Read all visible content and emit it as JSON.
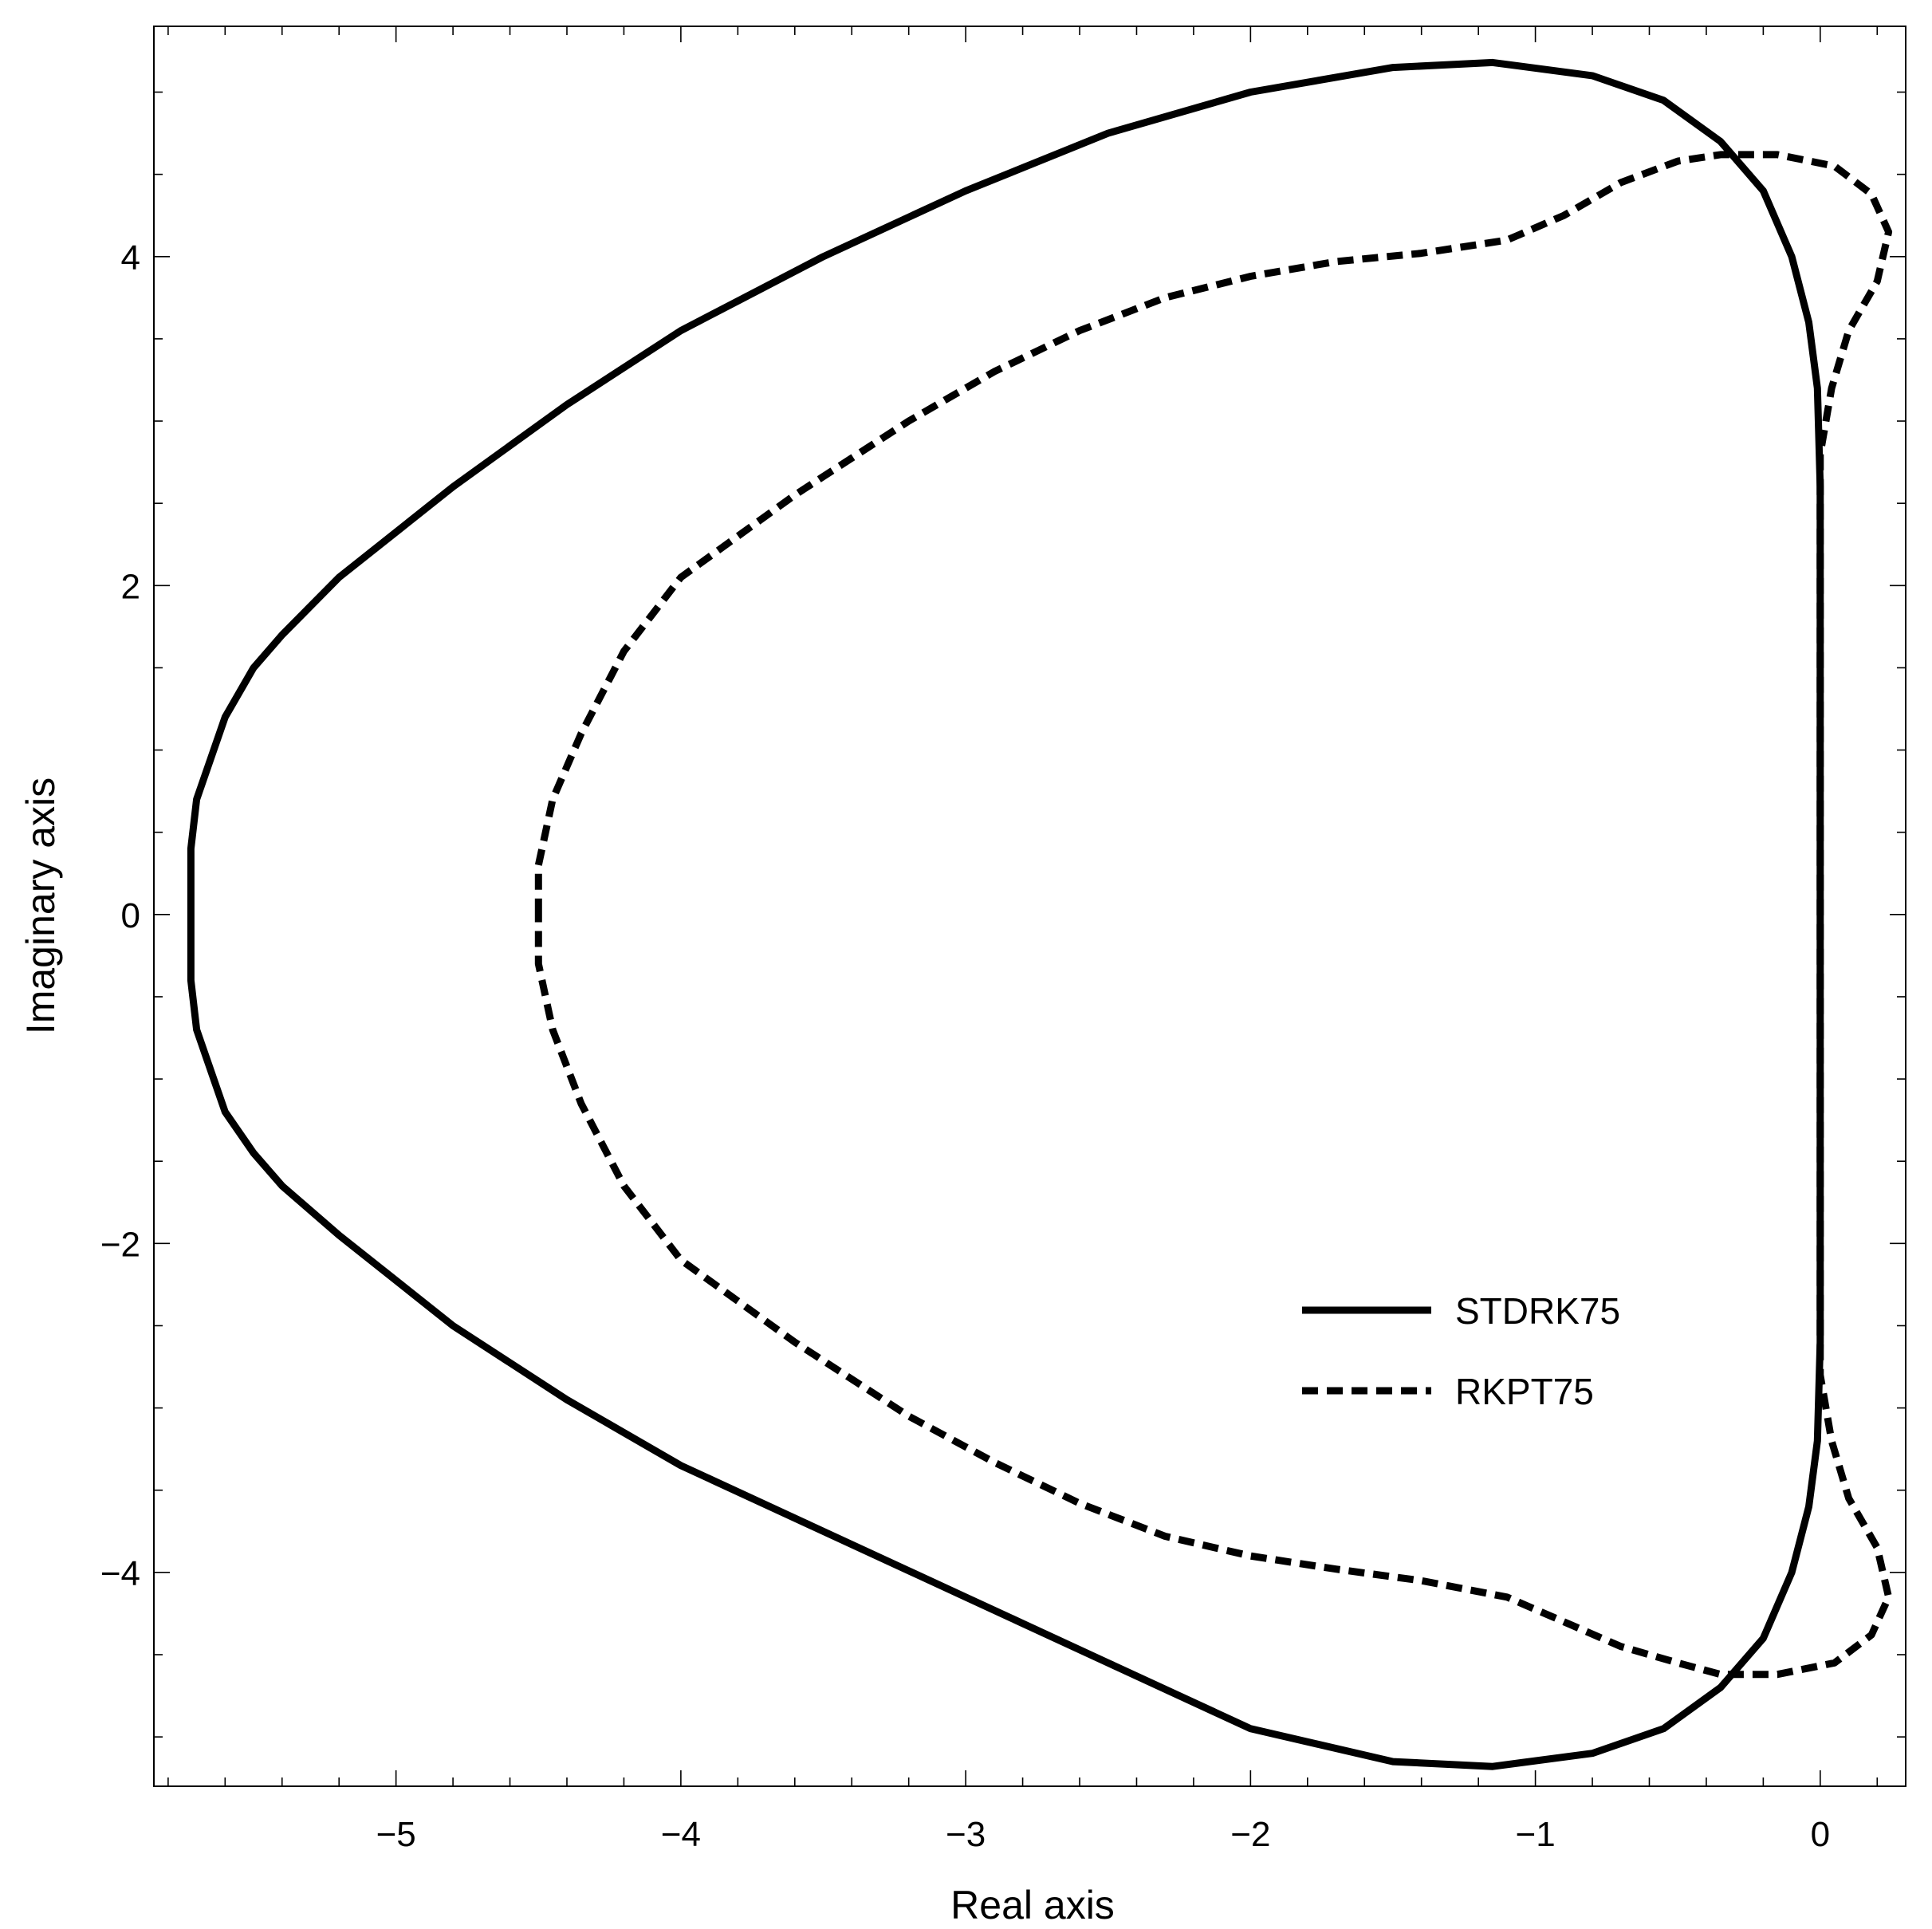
{
  "chart_data": {
    "type": "line",
    "xlabel": "Real axis",
    "ylabel": "Imaginary axis",
    "xlim": [
      -5.85,
      0.3
    ],
    "ylim": [
      -5.3,
      5.4
    ],
    "x_ticks": [
      {
        "value": -5,
        "label": "−5"
      },
      {
        "value": -4,
        "label": "−4"
      },
      {
        "value": -3,
        "label": "−3"
      },
      {
        "value": -2,
        "label": "−2"
      },
      {
        "value": -1,
        "label": "−1"
      },
      {
        "value": 0,
        "label": "0"
      }
    ],
    "y_ticks": [
      {
        "value": -4,
        "label": "−4"
      },
      {
        "value": -2,
        "label": "−2"
      },
      {
        "value": 0,
        "label": "0"
      },
      {
        "value": 2,
        "label": "2"
      },
      {
        "value": 4,
        "label": "4"
      }
    ],
    "grid": false,
    "legend_position": "bottom-right",
    "series": [
      {
        "name": "STDRK75",
        "style": "solid",
        "color": "#000000",
        "points": [
          [
            0.0,
            0.0
          ],
          [
            0.0,
            1.0
          ],
          [
            0.0,
            2.0
          ],
          [
            0.0,
            2.6
          ],
          [
            -0.01,
            3.2
          ],
          [
            -0.04,
            3.6
          ],
          [
            -0.1,
            4.0
          ],
          [
            -0.2,
            4.4
          ],
          [
            -0.35,
            4.7
          ],
          [
            -0.55,
            4.95
          ],
          [
            -0.8,
            5.1
          ],
          [
            -1.15,
            5.18
          ],
          [
            -1.5,
            5.15
          ],
          [
            -2.0,
            5.0
          ],
          [
            -2.5,
            4.75
          ],
          [
            -3.0,
            4.4
          ],
          [
            -3.5,
            4.0
          ],
          [
            -4.0,
            3.55
          ],
          [
            -4.4,
            3.1
          ],
          [
            -4.8,
            2.6
          ],
          [
            -5.2,
            2.05
          ],
          [
            -5.4,
            1.7
          ],
          [
            -5.5,
            1.5
          ],
          [
            -5.6,
            1.2
          ],
          [
            -5.7,
            0.7
          ],
          [
            -5.72,
            0.4
          ],
          [
            -5.72,
            0.0
          ],
          [
            -5.72,
            -0.4
          ],
          [
            -5.7,
            -0.7
          ],
          [
            -5.6,
            -1.2
          ],
          [
            -5.5,
            -1.45
          ],
          [
            -5.4,
            -1.65
          ],
          [
            -5.2,
            -1.95
          ],
          [
            -4.8,
            -2.5
          ],
          [
            -4.4,
            -2.95
          ],
          [
            -4.0,
            -3.35
          ],
          [
            -3.5,
            -3.75
          ],
          [
            -3.0,
            -4.15
          ],
          [
            -2.5,
            -4.55
          ],
          [
            -2.0,
            -4.95
          ],
          [
            -1.5,
            -5.15
          ],
          [
            -1.15,
            -5.18
          ],
          [
            -0.8,
            -5.1
          ],
          [
            -0.55,
            -4.95
          ],
          [
            -0.35,
            -4.7
          ],
          [
            -0.2,
            -4.4
          ],
          [
            -0.1,
            -4.0
          ],
          [
            -0.04,
            -3.6
          ],
          [
            -0.01,
            -3.2
          ],
          [
            0.0,
            -2.6
          ],
          [
            0.0,
            -2.0
          ],
          [
            0.0,
            -1.0
          ],
          [
            0.0,
            0.0
          ]
        ]
      },
      {
        "name": "RKPT75",
        "style": "dashed",
        "color": "#000000",
        "points": [
          [
            -4.5,
            0.0
          ],
          [
            -4.5,
            0.3
          ],
          [
            -4.45,
            0.7
          ],
          [
            -4.35,
            1.1
          ],
          [
            -4.2,
            1.6
          ],
          [
            -4.0,
            2.05
          ],
          [
            -3.6,
            2.55
          ],
          [
            -3.2,
            3.0
          ],
          [
            -2.9,
            3.3
          ],
          [
            -2.6,
            3.55
          ],
          [
            -2.3,
            3.75
          ],
          [
            -2.0,
            3.88
          ],
          [
            -1.7,
            3.97
          ],
          [
            -1.4,
            4.02
          ],
          [
            -1.1,
            4.1
          ],
          [
            -0.9,
            4.25
          ],
          [
            -0.7,
            4.45
          ],
          [
            -0.5,
            4.58
          ],
          [
            -0.35,
            4.62
          ],
          [
            -0.15,
            4.62
          ],
          [
            0.05,
            4.55
          ],
          [
            0.18,
            4.38
          ],
          [
            0.24,
            4.15
          ],
          [
            0.2,
            3.85
          ],
          [
            0.1,
            3.55
          ],
          [
            0.04,
            3.2
          ],
          [
            0.0,
            2.8
          ],
          [
            0.0,
            2.2
          ],
          [
            0.0,
            1.2
          ],
          [
            0.0,
            0.0
          ],
          [
            0.0,
            -1.2
          ],
          [
            0.0,
            -2.2
          ],
          [
            0.0,
            -2.8
          ],
          [
            0.04,
            -3.2
          ],
          [
            0.1,
            -3.55
          ],
          [
            0.2,
            -3.85
          ],
          [
            0.24,
            -4.15
          ],
          [
            0.18,
            -4.38
          ],
          [
            0.05,
            -4.55
          ],
          [
            -0.15,
            -4.62
          ],
          [
            -0.35,
            -4.62
          ],
          [
            -0.5,
            -4.55
          ],
          [
            -0.7,
            -4.45
          ],
          [
            -0.9,
            -4.3
          ],
          [
            -1.1,
            -4.15
          ],
          [
            -1.4,
            -4.05
          ],
          [
            -1.7,
            -3.98
          ],
          [
            -2.0,
            -3.9
          ],
          [
            -2.3,
            -3.78
          ],
          [
            -2.6,
            -3.58
          ],
          [
            -2.9,
            -3.33
          ],
          [
            -3.2,
            -3.05
          ],
          [
            -3.6,
            -2.6
          ],
          [
            -4.0,
            -2.1
          ],
          [
            -4.2,
            -1.65
          ],
          [
            -4.35,
            -1.15
          ],
          [
            -4.45,
            -0.7
          ],
          [
            -4.5,
            -0.3
          ],
          [
            -4.5,
            0.0
          ]
        ]
      }
    ]
  }
}
